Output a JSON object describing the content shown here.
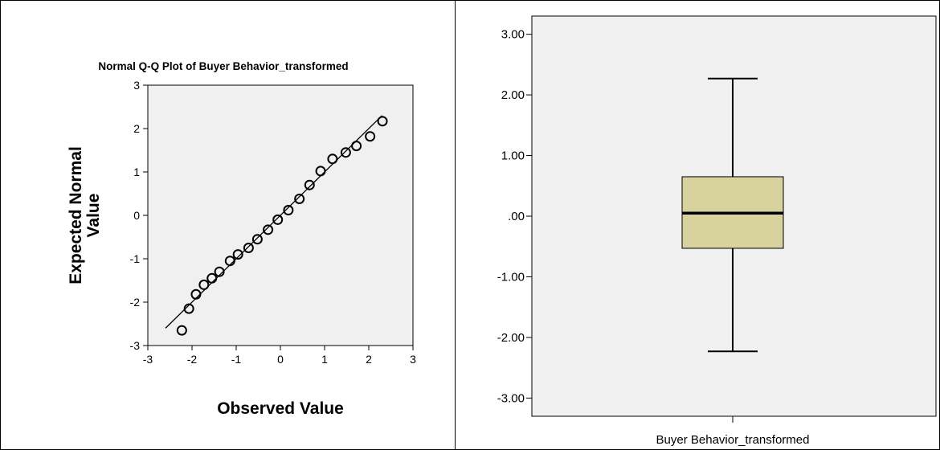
{
  "qq_panel": {
    "title": "Normal Q-Q Plot of Buyer Behavior_transformed",
    "xlabel": "Observed Value",
    "ylabel_line1": "Expected Normal",
    "ylabel_line2": "Value",
    "x_ticks": [
      "-3",
      "-2",
      "-1",
      "0",
      "1",
      "2",
      "3"
    ],
    "y_ticks": [
      "3",
      "2",
      "1",
      "0",
      "-1",
      "-2",
      "-3"
    ]
  },
  "box_panel": {
    "category_label": "Buyer Behavior_transformed",
    "y_ticks": [
      "3.00",
      "2.00",
      "1.00",
      ".00",
      "-1.00",
      "-2.00",
      "-3.00"
    ]
  },
  "colors": {
    "plot_bg": "#f0f0f0",
    "box_fill": "#d8d29e",
    "ink": "#000000"
  },
  "chart_data": [
    {
      "type": "scatter",
      "title": "Normal Q-Q Plot of Buyer Behavior_transformed",
      "xlabel": "Observed Value",
      "ylabel": "Expected Normal Value",
      "xlim": [
        -3,
        3
      ],
      "ylim": [
        -3,
        3
      ],
      "grid": false,
      "reference_line": [
        [
          -2.6,
          -2.6
        ],
        [
          2.3,
          2.3
        ]
      ],
      "series": [
        {
          "x": [
            -2.23,
            -2.07,
            -1.91,
            -1.73,
            -1.55,
            -1.38,
            -1.14,
            -0.96,
            -0.72,
            -0.52,
            -0.28,
            -0.06,
            0.18,
            0.43,
            0.66,
            0.91,
            1.18,
            1.48,
            1.72,
            2.03,
            2.31
          ],
          "y": [
            -2.65,
            -2.15,
            -1.82,
            -1.6,
            -1.45,
            -1.3,
            -1.05,
            -0.9,
            -0.75,
            -0.55,
            -0.33,
            -0.1,
            0.12,
            0.38,
            0.7,
            1.02,
            1.3,
            1.45,
            1.6,
            1.82,
            2.17
          ]
        }
      ]
    },
    {
      "type": "box",
      "categories": [
        "Buyer Behavior_transformed"
      ],
      "ylim": [
        -3.3,
        3.3
      ],
      "grid": false,
      "min": -2.23,
      "q1": -0.53,
      "median": 0.05,
      "q3": 0.65,
      "max": 2.27
    }
  ]
}
